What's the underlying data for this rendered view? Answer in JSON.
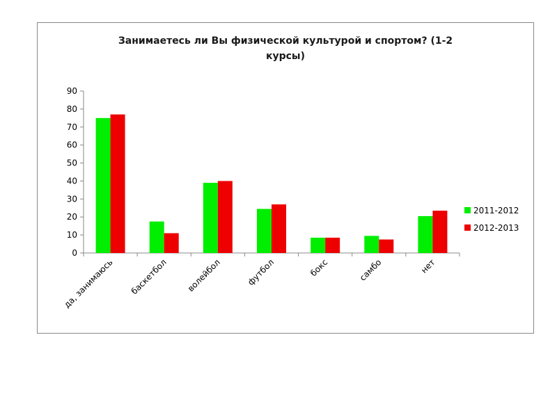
{
  "chart_data": {
    "type": "bar",
    "title": "Занимаетесь ли Вы физической культурой и спортом? (1-2 курсы)",
    "xlabel": "",
    "ylabel": "",
    "ylim": [
      0,
      90
    ],
    "yticks": [
      0,
      10,
      20,
      30,
      40,
      50,
      60,
      70,
      80,
      90
    ],
    "grid": false,
    "legend_position": "right",
    "categories": [
      "да, занимаюсь",
      "баскетбол",
      "волейбол",
      "футбол",
      "бокс",
      "самбо",
      "нет"
    ],
    "series": [
      {
        "name": "2011-2012",
        "color": "#00ee00",
        "values": [
          75,
          17.5,
          39,
          24.5,
          8.5,
          9.5,
          20.5
        ]
      },
      {
        "name": "2012-2013",
        "color": "#ee0000",
        "values": [
          77,
          11,
          40,
          27,
          8.5,
          7.5,
          23.5
        ]
      }
    ]
  }
}
